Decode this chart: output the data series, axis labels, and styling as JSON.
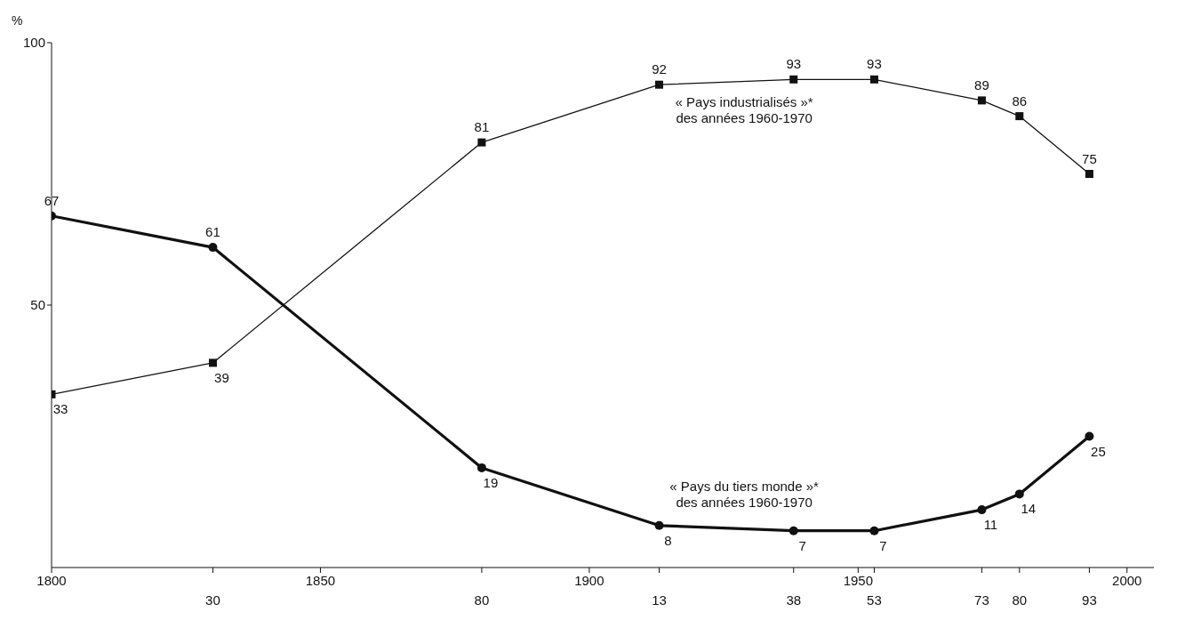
{
  "chart_data": {
    "type": "line",
    "ylabel": "%",
    "x": [
      1800,
      1830,
      1880,
      1913,
      1938,
      1953,
      1973,
      1980,
      1993
    ],
    "series": [
      {
        "name": "« Pays industrialisés »*\ndes années 1960-1970",
        "color": "#111111",
        "marker": "square",
        "values": [
          33,
          39,
          81,
          92,
          93,
          93,
          89,
          86,
          75
        ]
      },
      {
        "name": "« Pays du tiers monde »*\ndes années 1960-1970",
        "color": "#111111",
        "marker": "circle",
        "values": [
          67,
          61,
          19,
          8,
          7,
          7,
          11,
          14,
          25
        ]
      }
    ],
    "xlim": [
      1800,
      2005
    ],
    "xticks": [
      1800,
      1850,
      1900,
      1950,
      2000
    ],
    "x2lim": [
      1800,
      2005
    ],
    "x2ticks": [
      {
        "value": 1830,
        "label": "30"
      },
      {
        "value": 1880,
        "label": "80"
      },
      {
        "value": 1913,
        "label": "13"
      },
      {
        "value": 1938,
        "label": "38"
      },
      {
        "value": 1953,
        "label": "53"
      },
      {
        "value": 1973,
        "label": "73"
      },
      {
        "value": 1980,
        "label": "80"
      },
      {
        "value": 1993,
        "label": "93"
      }
    ],
    "ylim": [
      0,
      100
    ],
    "yticks": [
      50,
      100
    ],
    "data_labels": true,
    "grid": false,
    "legend": false
  }
}
